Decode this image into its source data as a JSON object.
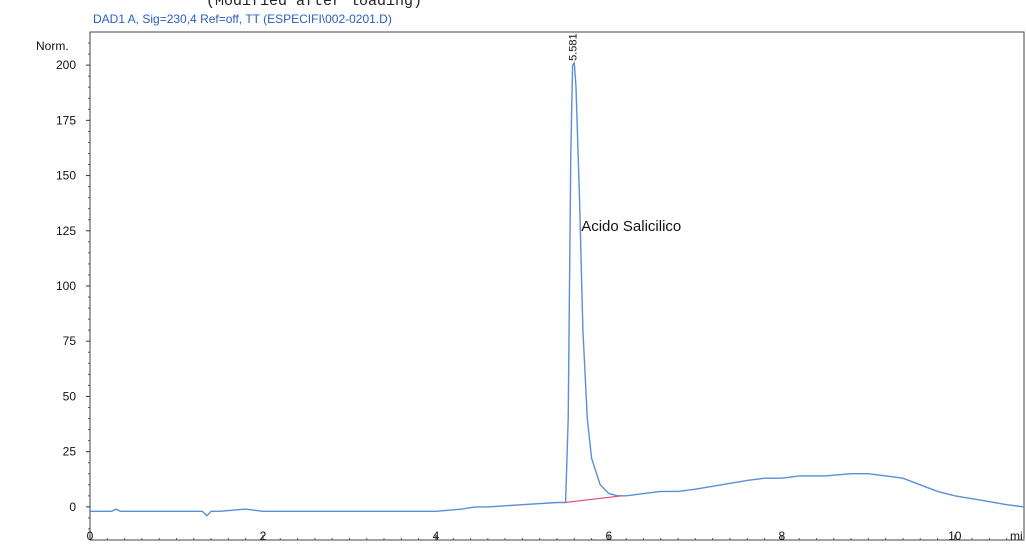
{
  "header": {
    "top_line": "(Modified after loading)",
    "signal": "DAD1 A, Sig=230,4 Ref=off, TT (ESPECIFI\\002-0201.D)"
  },
  "chart_data": {
    "type": "line",
    "title": "DAD1 A, Sig=230,4 Ref=off, TT (ESPECIFI\\002-0201.D)",
    "xlabel": "mi",
    "ylabel": "Norm.",
    "xlim": [
      0,
      10.8
    ],
    "ylim": [
      -15,
      215
    ],
    "x_ticks": [
      0,
      2,
      4,
      6,
      8,
      10
    ],
    "y_ticks": [
      0,
      25,
      50,
      75,
      100,
      125,
      150,
      175,
      200
    ],
    "grid": false,
    "line_color": "#5a8fd6",
    "baseline_color": "#e0457a",
    "series": [
      {
        "x": [
          0.0,
          0.25,
          0.3,
          0.35,
          0.6,
          1.0,
          1.3,
          1.35,
          1.4,
          1.5,
          1.8,
          2.0,
          2.5,
          3.0,
          3.5,
          4.0,
          4.3,
          4.45,
          4.6,
          5.0,
          5.4,
          5.5,
          5.53,
          5.56,
          5.58,
          5.6,
          5.62,
          5.66,
          5.7,
          5.75,
          5.8,
          5.9,
          6.0,
          6.1,
          6.2,
          6.4,
          6.6,
          6.8,
          7.0,
          7.3,
          7.6,
          7.8,
          8.0,
          8.2,
          8.5,
          8.8,
          9.0,
          9.2,
          9.4,
          9.6,
          9.8,
          10.0,
          10.3,
          10.6,
          10.8
        ],
        "y": [
          -2,
          -2,
          -1,
          -2,
          -2,
          -2,
          -2,
          -4,
          -2,
          -2,
          -1,
          -2,
          -2,
          -2,
          -2,
          -2,
          -1,
          0,
          0,
          1,
          2,
          2,
          40,
          160,
          200,
          201,
          190,
          140,
          80,
          40,
          22,
          10,
          6,
          5,
          5,
          6,
          7,
          7,
          8,
          10,
          12,
          13,
          13,
          14,
          14,
          15,
          15,
          14,
          13,
          10,
          7,
          5,
          3,
          1,
          0
        ]
      }
    ],
    "integration_baseline": {
      "x": [
        5.5,
        6.15
      ],
      "y": [
        2,
        5
      ]
    },
    "annotations": [
      {
        "text": "5.581",
        "x": 5.581,
        "y": 201,
        "rotated": true
      },
      {
        "text": "Acido Salicilico",
        "x": 5.68,
        "y": 125
      }
    ]
  }
}
